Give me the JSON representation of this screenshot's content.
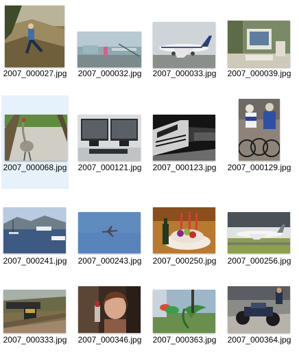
{
  "window": {
    "view": "large-icons"
  },
  "files": [
    {
      "name": "2007_000027.jp",
      "ext": "g",
      "thumb": "person-on-path-icon"
    },
    {
      "name": "2007_000032.jp",
      "ext": "g",
      "thumb": "airport-apron-icon"
    },
    {
      "name": "2007_000033.jp",
      "ext": "g",
      "thumb": "airliner-icon"
    },
    {
      "name": "2007_000039.jp",
      "ext": "g",
      "thumb": "crt-monitor-icon"
    },
    {
      "name": "2007_000068.jp",
      "ext": "g",
      "thumb": "crane-bird-icon",
      "selected": true
    },
    {
      "name": "2007_000121.jp",
      "ext": "g",
      "thumb": "dual-monitors-icon"
    },
    {
      "name": "2007_000123.jp",
      "ext": "g",
      "thumb": "train-night-icon"
    },
    {
      "name": "2007_000129.jp",
      "ext": "g",
      "thumb": "cyclists-icon"
    },
    {
      "name": "2007_000241.jp",
      "ext": "g",
      "thumb": "harbor-boats-icon"
    },
    {
      "name": "2007_000243.jp",
      "ext": "g",
      "thumb": "jet-in-sky-icon"
    },
    {
      "name": "2007_000250.jp",
      "ext": "g",
      "thumb": "cake-bottle-icon"
    },
    {
      "name": "2007_000256.jp",
      "ext": "g",
      "thumb": "plane-runway-icon"
    },
    {
      "name": "2007_000333.jp",
      "ext": "g",
      "thumb": "freight-train-icon"
    },
    {
      "name": "2007_000346.jp",
      "ext": "g",
      "thumb": "woman-portrait-icon"
    },
    {
      "name": "2007_000363.jp",
      "ext": "g",
      "thumb": "parrot-icon"
    },
    {
      "name": "2007_000364.jp",
      "ext": "g",
      "thumb": "motorcycle-icon"
    }
  ]
}
